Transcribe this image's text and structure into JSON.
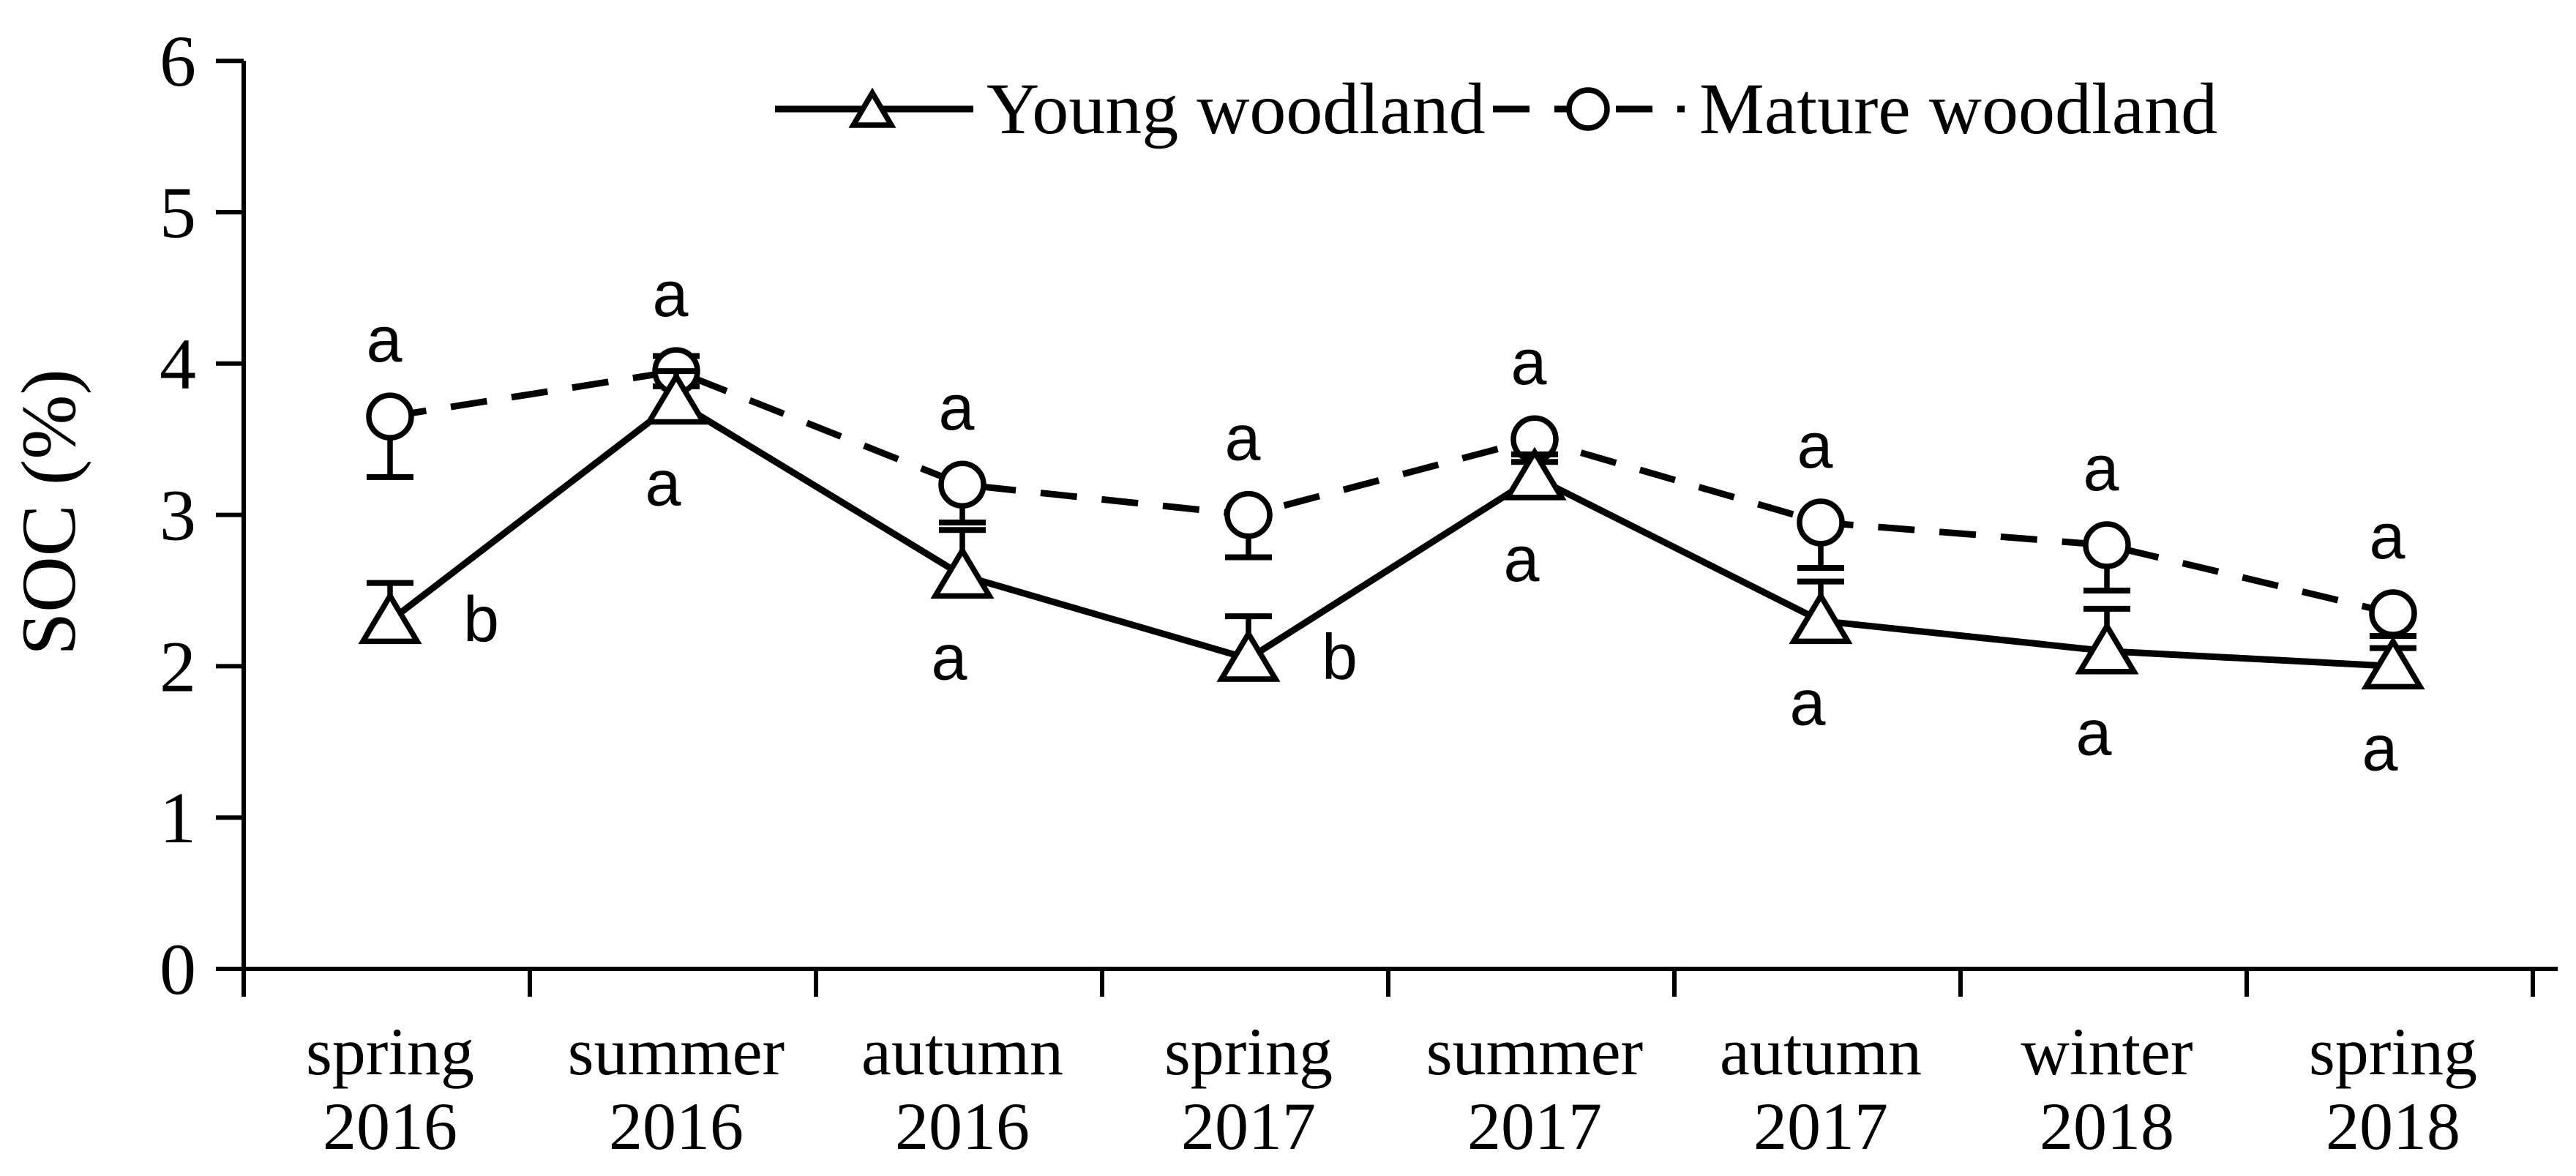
{
  "page": {
    "background": "#ffffff",
    "ink": "#000000"
  },
  "chart_data": {
    "type": "line",
    "title": "",
    "ylabel": "SOC (%)",
    "xlabel": "",
    "ylim": [
      0,
      6
    ],
    "yticks": [
      0,
      1,
      2,
      3,
      4,
      5,
      6
    ],
    "grid": false,
    "legend_position": "top-center",
    "categories": [
      [
        "spring",
        "2016"
      ],
      [
        "summer",
        "2016"
      ],
      [
        "autumn",
        "2016"
      ],
      [
        "spring",
        "2017"
      ],
      [
        "summer",
        "2017"
      ],
      [
        "autumn",
        "2017"
      ],
      [
        "winter",
        "2018"
      ],
      [
        "spring",
        "2018"
      ]
    ],
    "series": [
      {
        "name": "Mature woodland",
        "line": "dashed",
        "marker": "open-circle",
        "values": [
          3.65,
          3.95,
          3.2,
          3.0,
          3.5,
          2.95,
          2.8,
          2.35
        ],
        "err_up": [
          0,
          0.1,
          0,
          0,
          0,
          0,
          0,
          0
        ],
        "err_down": [
          0.4,
          0.1,
          0.25,
          0.28,
          0.15,
          0.3,
          0.3,
          0.15
        ],
        "letters": [
          "a",
          "a",
          "a",
          "a",
          "a",
          "a",
          "a",
          "a"
        ],
        "letter_pos": [
          "above",
          "above",
          "above",
          "above",
          "above",
          "above",
          "above",
          "above"
        ]
      },
      {
        "name": "Young woodland",
        "line": "solid",
        "marker": "open-triangle",
        "values": [
          2.3,
          3.75,
          2.6,
          2.05,
          3.25,
          2.3,
          2.1,
          2.0
        ],
        "err_up": [
          0.25,
          0.2,
          0.3,
          0.28,
          0.15,
          0.26,
          0.28,
          0.12
        ],
        "err_down": [
          0,
          0,
          0,
          0,
          0,
          0,
          0,
          0
        ],
        "letters": [
          "b",
          "a",
          "a",
          "b",
          "a",
          "a",
          "a",
          "a"
        ],
        "letter_pos": [
          "right",
          "below",
          "below",
          "right",
          "below",
          "below",
          "below",
          "below"
        ]
      }
    ]
  }
}
